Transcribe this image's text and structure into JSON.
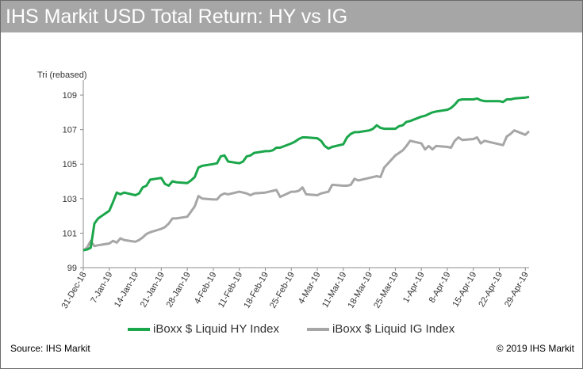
{
  "title": "IHS Markit USD Total Return: HY vs IG",
  "source": "Source: IHS Markit",
  "copyright": "© 2019 IHS Markit",
  "chart_data": {
    "type": "line",
    "title": "IHS Markit USD Total Return: HY vs IG",
    "ylabel": "Tri (rebased)",
    "ylim": [
      99,
      109.6
    ],
    "yticks": [
      99,
      101,
      103,
      105,
      107,
      109
    ],
    "xtick_labels": [
      "31-Dec-18",
      "7-Jan-19",
      "14-Jan-19",
      "21-Jan-19",
      "28-Jan-19",
      "4-Feb-19",
      "11-Feb-19",
      "18-Feb-19",
      "25-Feb-19",
      "4-Mar-19",
      "11-Mar-19",
      "18-Mar-19",
      "25-Mar-19",
      "1-Apr-19",
      "8-Apr-19",
      "15-Apr-19",
      "22-Apr-19",
      "29-Apr-19"
    ],
    "x_start": "31-Dec-18",
    "x_end": "30-Apr-19",
    "grid": false,
    "legend_position": "bottom",
    "series": [
      {
        "name": "iBoxx $ Liquid HY Index",
        "color": "#1aa64a",
        "x": [
          "31-Dec-18",
          "1-Jan-19",
          "2-Jan-19",
          "3-Jan-19",
          "4-Jan-19",
          "7-Jan-19",
          "8-Jan-19",
          "9-Jan-19",
          "10-Jan-19",
          "11-Jan-19",
          "14-Jan-19",
          "15-Jan-19",
          "16-Jan-19",
          "17-Jan-19",
          "18-Jan-19",
          "21-Jan-19",
          "22-Jan-19",
          "23-Jan-19",
          "24-Jan-19",
          "25-Jan-19",
          "28-Jan-19",
          "29-Jan-19",
          "30-Jan-19",
          "31-Jan-19",
          "1-Feb-19",
          "4-Feb-19",
          "5-Feb-19",
          "6-Feb-19",
          "7-Feb-19",
          "8-Feb-19",
          "11-Feb-19",
          "12-Feb-19",
          "13-Feb-19",
          "14-Feb-19",
          "15-Feb-19",
          "18-Feb-19",
          "19-Feb-19",
          "20-Feb-19",
          "21-Feb-19",
          "22-Feb-19",
          "25-Feb-19",
          "26-Feb-19",
          "27-Feb-19",
          "28-Feb-19",
          "1-Mar-19",
          "4-Mar-19",
          "5-Mar-19",
          "6-Mar-19",
          "7-Mar-19",
          "8-Mar-19",
          "11-Mar-19",
          "12-Mar-19",
          "13-Mar-19",
          "14-Mar-19",
          "15-Mar-19",
          "18-Mar-19",
          "19-Mar-19",
          "20-Mar-19",
          "21-Mar-19",
          "22-Mar-19",
          "25-Mar-19",
          "26-Mar-19",
          "27-Mar-19",
          "28-Mar-19",
          "29-Mar-19",
          "1-Apr-19",
          "2-Apr-19",
          "3-Apr-19",
          "4-Apr-19",
          "5-Apr-19",
          "8-Apr-19",
          "9-Apr-19",
          "10-Apr-19",
          "11-Apr-19",
          "12-Apr-19",
          "15-Apr-19",
          "16-Apr-19",
          "17-Apr-19",
          "18-Apr-19",
          "19-Apr-19",
          "22-Apr-19",
          "23-Apr-19",
          "24-Apr-19",
          "25-Apr-19",
          "26-Apr-19",
          "29-Apr-19",
          "30-Apr-19"
        ],
        "values": [
          100.0,
          100.05,
          100.15,
          101.55,
          101.85,
          102.3,
          102.8,
          103.35,
          103.25,
          103.35,
          103.2,
          103.3,
          103.65,
          103.75,
          104.1,
          104.2,
          103.85,
          103.75,
          104.0,
          103.95,
          103.9,
          104.05,
          104.25,
          104.8,
          104.9,
          105.0,
          105.05,
          105.45,
          105.5,
          105.15,
          105.05,
          105.15,
          105.45,
          105.5,
          105.65,
          105.75,
          105.75,
          105.8,
          105.95,
          105.95,
          106.2,
          106.3,
          106.45,
          106.55,
          106.55,
          106.5,
          106.35,
          106.05,
          105.9,
          106.0,
          106.15,
          106.55,
          106.75,
          106.85,
          106.85,
          106.95,
          107.05,
          107.25,
          107.1,
          107.05,
          107.05,
          107.2,
          107.25,
          107.45,
          107.5,
          107.75,
          107.8,
          107.9,
          108.0,
          108.05,
          108.15,
          108.25,
          108.45,
          108.7,
          108.75,
          108.75,
          108.8,
          108.7,
          108.65,
          108.65,
          108.65,
          108.6,
          108.75,
          108.75,
          108.8,
          108.85,
          108.9
        ]
      },
      {
        "name": "iBoxx $ Liquid IG Index",
        "color": "#a6a6a6",
        "x": [
          "31-Dec-18",
          "1-Jan-19",
          "2-Jan-19",
          "3-Jan-19",
          "4-Jan-19",
          "7-Jan-19",
          "8-Jan-19",
          "9-Jan-19",
          "10-Jan-19",
          "11-Jan-19",
          "14-Jan-19",
          "15-Jan-19",
          "16-Jan-19",
          "17-Jan-19",
          "18-Jan-19",
          "21-Jan-19",
          "22-Jan-19",
          "23-Jan-19",
          "24-Jan-19",
          "25-Jan-19",
          "28-Jan-19",
          "29-Jan-19",
          "30-Jan-19",
          "31-Jan-19",
          "1-Feb-19",
          "4-Feb-19",
          "5-Feb-19",
          "6-Feb-19",
          "7-Feb-19",
          "8-Feb-19",
          "11-Feb-19",
          "12-Feb-19",
          "13-Feb-19",
          "14-Feb-19",
          "15-Feb-19",
          "18-Feb-19",
          "19-Feb-19",
          "20-Feb-19",
          "21-Feb-19",
          "22-Feb-19",
          "25-Feb-19",
          "26-Feb-19",
          "27-Feb-19",
          "28-Feb-19",
          "1-Mar-19",
          "4-Mar-19",
          "5-Mar-19",
          "6-Mar-19",
          "7-Mar-19",
          "8-Mar-19",
          "11-Mar-19",
          "12-Mar-19",
          "13-Mar-19",
          "14-Mar-19",
          "15-Mar-19",
          "18-Mar-19",
          "19-Mar-19",
          "20-Mar-19",
          "21-Mar-19",
          "22-Mar-19",
          "25-Mar-19",
          "26-Mar-19",
          "27-Mar-19",
          "28-Mar-19",
          "29-Mar-19",
          "1-Apr-19",
          "2-Apr-19",
          "3-Apr-19",
          "4-Apr-19",
          "5-Apr-19",
          "8-Apr-19",
          "9-Apr-19",
          "10-Apr-19",
          "11-Apr-19",
          "12-Apr-19",
          "15-Apr-19",
          "16-Apr-19",
          "17-Apr-19",
          "18-Apr-19",
          "19-Apr-19",
          "22-Apr-19",
          "23-Apr-19",
          "24-Apr-19",
          "25-Apr-19",
          "26-Apr-19",
          "29-Apr-19",
          "30-Apr-19"
        ],
        "values": [
          100.0,
          100.15,
          100.55,
          100.25,
          100.3,
          100.4,
          100.55,
          100.45,
          100.7,
          100.6,
          100.5,
          100.6,
          100.75,
          100.95,
          101.05,
          101.25,
          101.35,
          101.55,
          101.85,
          101.85,
          101.95,
          102.25,
          102.55,
          103.15,
          103.0,
          102.95,
          102.95,
          103.2,
          103.3,
          103.25,
          103.4,
          103.35,
          103.3,
          103.2,
          103.3,
          103.35,
          103.4,
          103.45,
          103.5,
          103.1,
          103.4,
          103.4,
          103.45,
          103.65,
          103.25,
          103.2,
          103.3,
          103.35,
          103.4,
          103.8,
          103.75,
          103.75,
          103.8,
          104.15,
          104.05,
          104.2,
          104.25,
          104.3,
          104.25,
          104.8,
          105.5,
          105.65,
          105.8,
          106.05,
          106.35,
          106.2,
          105.85,
          106.05,
          105.85,
          106.05,
          106.0,
          105.95,
          106.35,
          106.55,
          106.4,
          106.45,
          106.55,
          106.2,
          106.35,
          106.3,
          106.15,
          106.1,
          106.6,
          106.75,
          106.95,
          106.7,
          106.9
        ]
      }
    ]
  }
}
